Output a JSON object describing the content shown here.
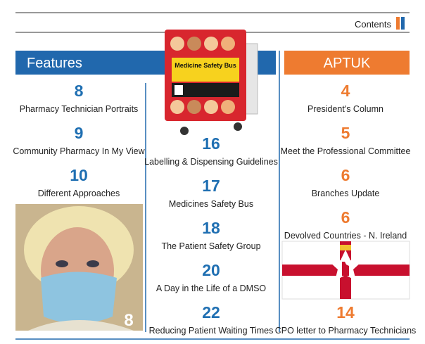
{
  "header": {
    "label": "Contents"
  },
  "features": {
    "title": "Features",
    "image_page": 8,
    "left": [
      {
        "page": 8,
        "title": "Pharmacy Technician Portraits"
      },
      {
        "page": 9,
        "title": "Community Pharmacy In My View"
      },
      {
        "page": 10,
        "title": "Different Approaches"
      }
    ],
    "middle": [
      {
        "page": 16,
        "title": "Labelling & Dispensing Guidelines"
      },
      {
        "page": 17,
        "title": "Medicines Safety Bus"
      },
      {
        "page": 18,
        "title": "The Patient Safety Group"
      },
      {
        "page": 20,
        "title": "A Day in the Life of a DMSO"
      },
      {
        "page": 22,
        "title": "Reducing Patient Waiting Times"
      }
    ],
    "bus_sign": "Medicine Safety Bus"
  },
  "aptuk": {
    "title": "APTUK",
    "items": [
      {
        "page": 4,
        "title": "President's Column"
      },
      {
        "page": 5,
        "title": "Meet the Professional Committee"
      },
      {
        "page": 6,
        "title": "Branches Update"
      },
      {
        "page": 6,
        "title": "Devolved Countries - N. Ireland"
      },
      {
        "page": 14,
        "title": "CPO letter to Pharmacy Technicians"
      }
    ]
  }
}
